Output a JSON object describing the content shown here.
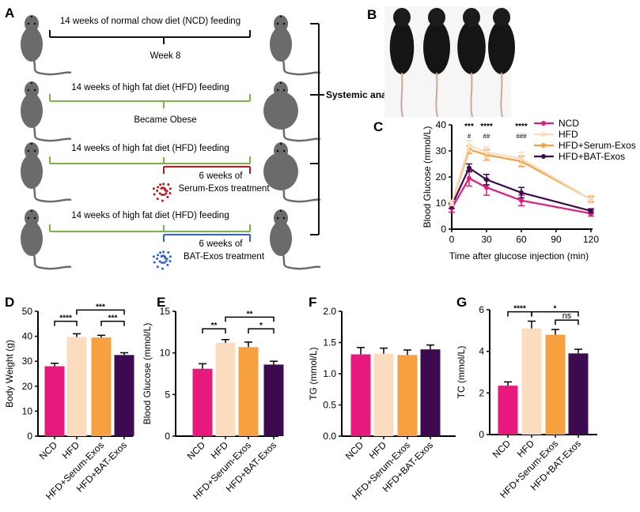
{
  "panel_labels": [
    "A",
    "B",
    "C",
    "D",
    "E",
    "F",
    "G"
  ],
  "schematic": {
    "rows": [
      {
        "title": "14 weeks of normal chow diet (NCD) feeding",
        "color": "#111111",
        "below": "Week 8",
        "treatment": null
      },
      {
        "title": "14 weeks of high fat diet (HFD) feeding",
        "color": "#7cb342",
        "below": "Became Obese",
        "treatment": null
      },
      {
        "title": "14 weeks of high fat diet (HFD) feeding",
        "color": "#7cb342",
        "below": null,
        "treatment": {
          "line1": "6 weeks of",
          "line2": "Serum-Exos treatment",
          "color": "#c0141e"
        }
      },
      {
        "title": "14 weeks of high fat diet (HFD) feeding",
        "color": "#7cb342",
        "below": null,
        "treatment": {
          "line1": "6 weeks of",
          "line2": "BAT-Exos treatment",
          "color": "#2f5fd6"
        }
      }
    ],
    "outcome": "Systemic analysis",
    "mouse_color": "#6b6b6b"
  },
  "colors": {
    "NCD": "#e8197d",
    "HFD": "#fbdcbf",
    "HFD+Serum-Exos": "#f7a040",
    "HFD+BAT-Exos": "#3d0a4f"
  },
  "chart_data": [
    {
      "panel": "C",
      "type": "line",
      "xlabel": "Time after glucose injection (min)",
      "ylabel": "Blood Glucose (mmol/L)",
      "x": [
        0,
        15,
        30,
        60,
        120
      ],
      "xticks": [
        0,
        30,
        60,
        90,
        120
      ],
      "yticks": [
        0,
        10,
        20,
        30,
        40
      ],
      "xlim": [
        0,
        120
      ],
      "ylim": [
        0,
        40
      ],
      "legend": "top-right",
      "series": [
        {
          "name": "NCD",
          "values": [
            8,
            19.5,
            16,
            11,
            6
          ],
          "errors": [
            1.5,
            3,
            3,
            2,
            1
          ]
        },
        {
          "name": "HFD",
          "values": [
            10,
            32,
            29.5,
            27,
            11.5
          ],
          "errors": [
            1,
            2,
            2,
            2.5,
            1.5
          ]
        },
        {
          "name": "HFD+Serum-Exos",
          "values": [
            10,
            30.5,
            28.5,
            26,
            11.5
          ],
          "errors": [
            1,
            1.5,
            2,
            2,
            1
          ]
        },
        {
          "name": "HFD+BAT-Exos",
          "values": [
            9,
            23.5,
            19,
            14,
            7
          ],
          "errors": [
            1,
            1.5,
            2,
            2,
            0.8
          ]
        }
      ],
      "annotations": [
        {
          "x": 15,
          "top": "***",
          "bottom": "#"
        },
        {
          "x": 30,
          "top": "****",
          "bottom": "##"
        },
        {
          "x": 60,
          "top": "****",
          "bottom": "###"
        }
      ]
    },
    {
      "panel": "D",
      "type": "bar",
      "ylabel": "Body Weight (g)",
      "ylim": [
        0,
        50
      ],
      "yticks": [
        0,
        10,
        20,
        30,
        40,
        50
      ],
      "categories": [
        "NCD",
        "HFD",
        "HFD+Serum-Exos",
        "HFD+BAT-Exos"
      ],
      "values": [
        28,
        39.7,
        39.5,
        32.5
      ],
      "errors": [
        1.2,
        1.3,
        0.9,
        0.9
      ],
      "significance": [
        {
          "from": 0,
          "to": 1,
          "label": "****",
          "y": 46
        },
        {
          "from": 1,
          "to": 3,
          "label": "***",
          "y": 50.5
        },
        {
          "from": 2,
          "to": 3,
          "label": "***",
          "y": 46
        }
      ]
    },
    {
      "panel": "E",
      "type": "bar",
      "ylabel": "Blood Glucose (mmol/L)",
      "ylim": [
        0,
        15
      ],
      "yticks": [
        0,
        5,
        10,
        15
      ],
      "categories": [
        "NCD",
        "HFD",
        "HFD+Serum-Exos",
        "HFD+BAT-Exos"
      ],
      "values": [
        8.1,
        11.2,
        10.7,
        8.6
      ],
      "errors": [
        0.6,
        0.4,
        0.6,
        0.4
      ],
      "significance": [
        {
          "from": 0,
          "to": 1,
          "label": "**",
          "y": 12.9
        },
        {
          "from": 1,
          "to": 3,
          "label": "**",
          "y": 14.3
        },
        {
          "from": 2,
          "to": 3,
          "label": "*",
          "y": 12.9
        }
      ]
    },
    {
      "panel": "F",
      "type": "bar",
      "ylabel": "TG (mmol/L)",
      "ylim": [
        0,
        2
      ],
      "yticks": [
        "0.0",
        "0.5",
        "1.0",
        "1.5",
        "2.0"
      ],
      "categories": [
        "NCD",
        "HFD",
        "HFD+Serum-Exos",
        "HFD+BAT-Exos"
      ],
      "values": [
        1.31,
        1.32,
        1.3,
        1.39
      ],
      "errors": [
        0.11,
        0.09,
        0.08,
        0.07
      ],
      "significance": []
    },
    {
      "panel": "G",
      "type": "bar",
      "ylabel": "TC (mmol/L)",
      "ylim": [
        0,
        6
      ],
      "yticks": [
        0,
        2,
        4,
        6
      ],
      "categories": [
        "NCD",
        "HFD",
        "HFD+Serum-Exos",
        "HFD+BAT-Exos"
      ],
      "values": [
        2.35,
        5.1,
        4.8,
        3.9
      ],
      "errors": [
        0.18,
        0.35,
        0.25,
        0.2
      ],
      "significance": [
        {
          "from": 0,
          "to": 1,
          "label": "****",
          "y": 5.9
        },
        {
          "from": 1,
          "to": 3,
          "label": "*",
          "y": 5.9
        },
        {
          "from": 2,
          "to": 3,
          "label": "ns",
          "y": 5.5
        }
      ]
    }
  ]
}
